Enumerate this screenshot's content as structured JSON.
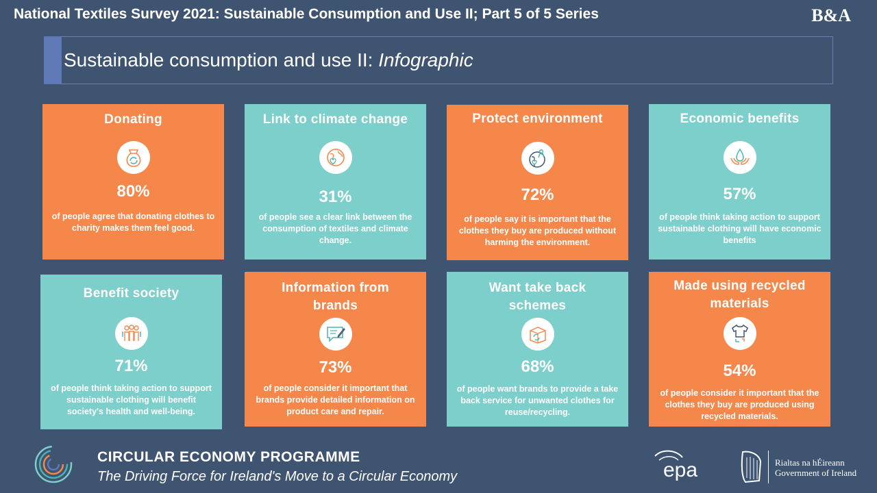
{
  "header": {
    "title": "National Textiles Survey 2021: Sustainable Consumption and Use II; Part 5 of 5 Series",
    "logo": "B&A"
  },
  "subtitle": {
    "text": "Sustainable consumption and use II: ",
    "italic": "Infographic"
  },
  "cards": [
    {
      "title": "Donating",
      "percent": "80%",
      "description": "of people agree that donating clothes to charity makes them feel good.",
      "icon": "donation-bag-icon",
      "color": "#f5874a"
    },
    {
      "title": "Link to climate change",
      "percent": "31%",
      "description": "of people see a clear link between the consumption of textiles and climate change.",
      "icon": "globe-heart-icon",
      "color": "#7ccfca"
    },
    {
      "title": "Protect environment",
      "percent": "72%",
      "description": "of people say it is important that the clothes they buy are produced without harming the environment.",
      "icon": "earth-ribbon-icon",
      "color": "#f5874a"
    },
    {
      "title": "Economic benefits",
      "percent": "57%",
      "description": "of people think taking action to support sustainable clothing will have economic benefits",
      "icon": "hands-droplet-icon",
      "color": "#7ccfca"
    },
    {
      "title": "Benefit society",
      "percent": "71%",
      "description": "of people think taking action to support sustainable clothing will benefit society's health and well-being.",
      "icon": "people-group-icon",
      "color": "#7ccfca"
    },
    {
      "title": "Information from brands",
      "percent": "73%",
      "description": "of people consider it important that brands provide detailed information on product care and repair.",
      "icon": "message-pen-icon",
      "color": "#f5874a"
    },
    {
      "title": "Want take back schemes",
      "percent": "68%",
      "description": "of people want brands to provide a take back service for unwanted clothes for reuse/recycling.",
      "icon": "recycle-box-icon",
      "color": "#7ccfca"
    },
    {
      "title": "Made using recycled materials",
      "percent": "54%",
      "description": "of people consider it important that the clothes they buy are produced using recycled materials.",
      "icon": "recycled-shirt-icon",
      "color": "#f5874a"
    }
  ],
  "footer": {
    "title": "CIRCULAR ECONOMY PROGRAMME",
    "subtitle": "The Driving Force for Ireland's Move to a Circular Economy",
    "epa_logo": "epa",
    "gov_line1": "Rialtas na hÉireann",
    "gov_line2": "Government of Ireland"
  }
}
